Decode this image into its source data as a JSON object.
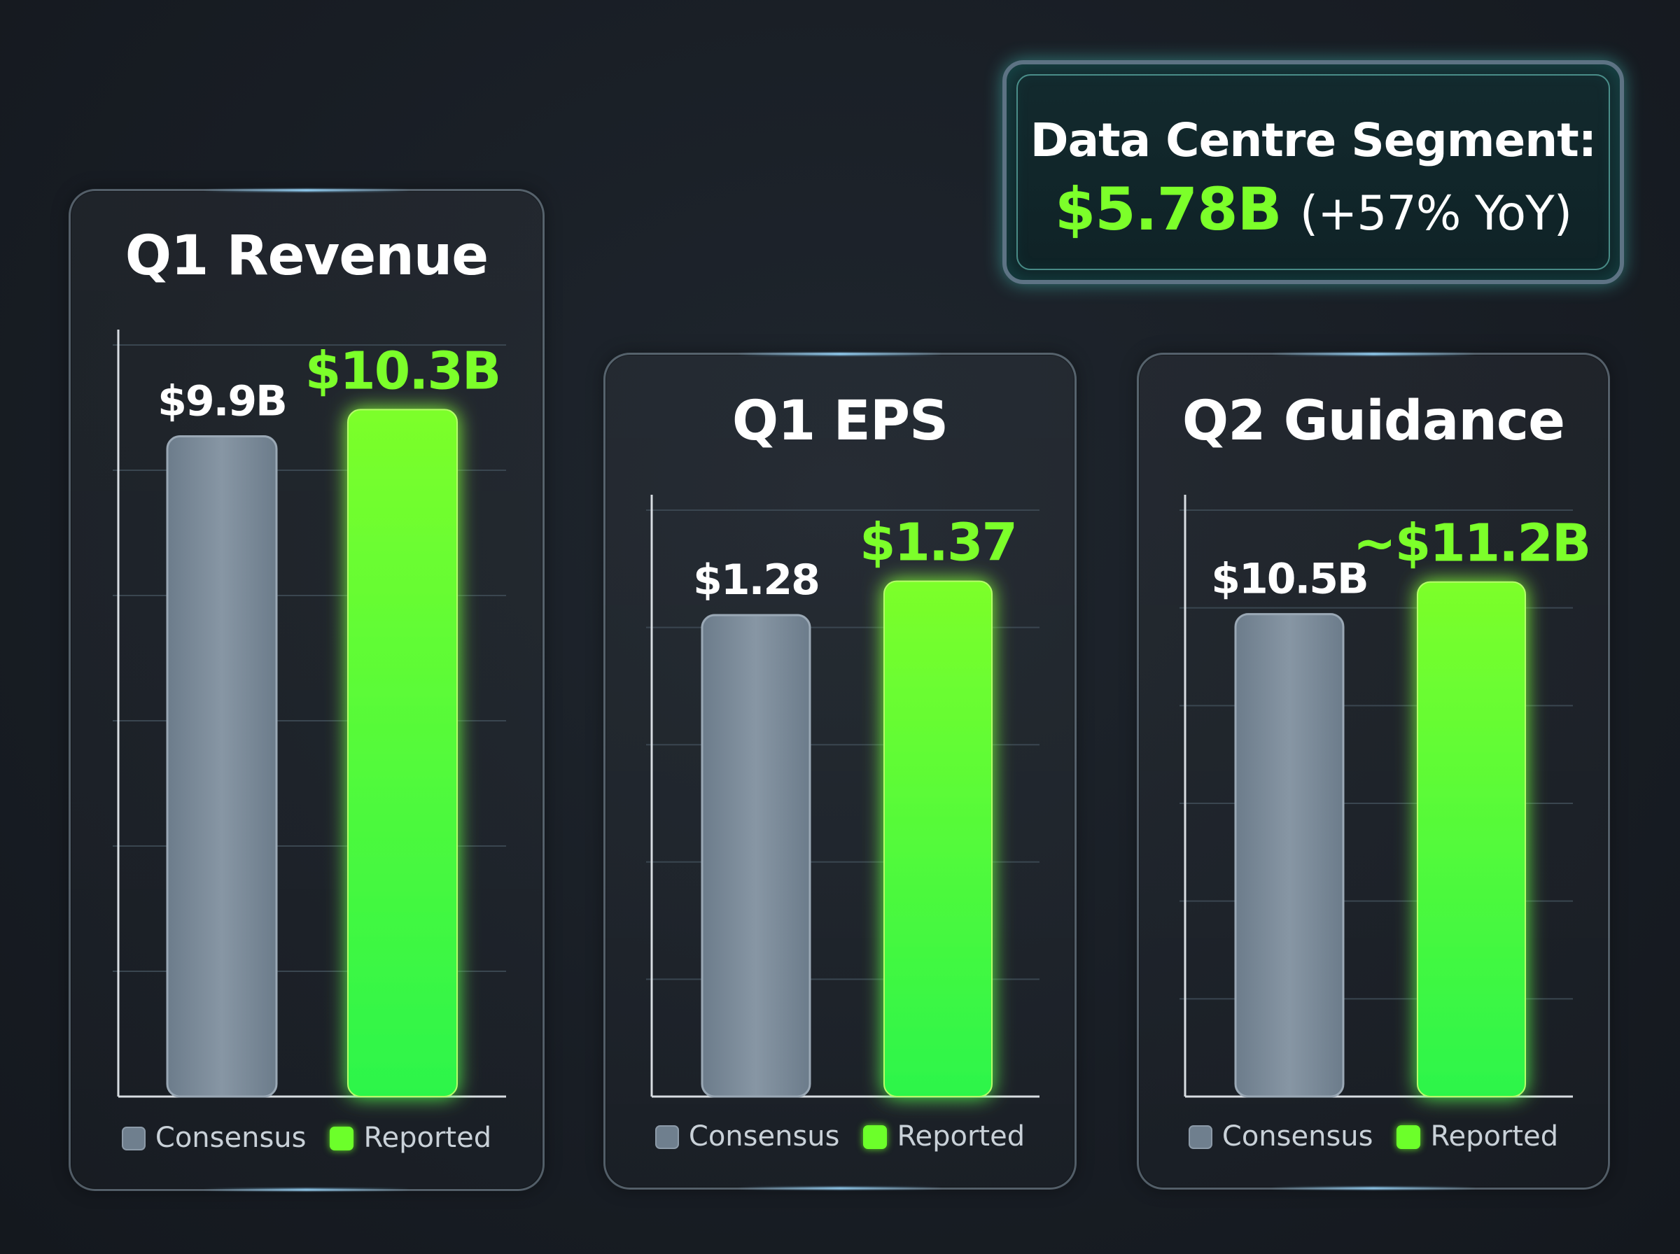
{
  "callout": {
    "label": "Data Centre Segment:",
    "value": "$5.78B",
    "change": "(+57% YoY)"
  },
  "legend": {
    "consensus": "Consensus",
    "reported": "Reported"
  },
  "colors": {
    "consensus": "#7a8a99",
    "reported": "#7cff2a",
    "reported_bottom": "#2cf54a",
    "grid": "#3a4650",
    "axis": "#d8dde2"
  },
  "chart_data": [
    {
      "type": "bar",
      "title": "Q1 Revenue",
      "categories": [
        "Consensus",
        "Reported"
      ],
      "values": [
        9.9,
        10.3
      ],
      "labels": [
        "$9.9B",
        "$10.3B"
      ],
      "ylim": [
        0,
        11.5
      ],
      "grid": true
    },
    {
      "type": "bar",
      "title": "Q1 EPS",
      "categories": [
        "Consensus",
        "Reported"
      ],
      "values": [
        1.28,
        1.37
      ],
      "labels": [
        "$1.28",
        "$1.37"
      ],
      "ylim": [
        0,
        1.6
      ],
      "grid": true
    },
    {
      "type": "bar",
      "title": "Q2 Guidance",
      "categories": [
        "Consensus",
        "Reported"
      ],
      "values": [
        10.5,
        11.2
      ],
      "labels": [
        "$10.5B",
        "~$11.2B"
      ],
      "ylim": [
        0,
        13.1
      ],
      "grid": true
    }
  ]
}
